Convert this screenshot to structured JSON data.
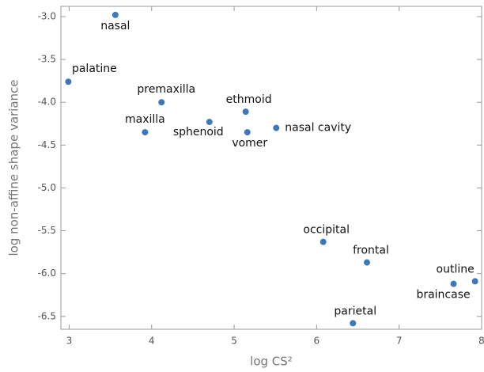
{
  "chart_data": {
    "type": "scatter",
    "x_label": "log CS²",
    "y_label": "log non-affine shape variance",
    "xlim": [
      2.9,
      8.0
    ],
    "ylim": [
      -6.65,
      -2.88
    ],
    "xticks": [
      3,
      4,
      5,
      6,
      7,
      8
    ],
    "yticks": [
      {
        "value": -3,
        "label": "-3.0"
      },
      {
        "value": -3.5,
        "label": "-3.5"
      },
      {
        "value": -4,
        "label": "-4.0"
      },
      {
        "value": -4.5,
        "label": "-4.5"
      },
      {
        "value": -5,
        "label": "-5.0"
      },
      {
        "value": -5.5,
        "label": "-5.5"
      },
      {
        "value": -6,
        "label": "-6.0"
      },
      {
        "value": -6.5,
        "label": "-6.5"
      }
    ],
    "series": [
      {
        "color": "#3d78b9",
        "labels": [
          "nasal",
          "palatine",
          "premaxilla",
          "maxilla",
          "sphenoid",
          "ethmoid",
          "vomer",
          "nasal cavity",
          "occipital",
          "frontal",
          "parietal",
          "braincase",
          "outline"
        ],
        "x": [
          3.56,
          2.99,
          4.12,
          3.92,
          4.7,
          5.14,
          5.16,
          5.51,
          6.08,
          6.61,
          6.44,
          7.66,
          7.92
        ],
        "values": [
          -2.98,
          -3.76,
          -4.0,
          -4.35,
          -4.23,
          -4.11,
          -4.35,
          -4.3,
          -5.63,
          -5.87,
          -6.58,
          -6.12,
          -6.09
        ]
      }
    ]
  }
}
